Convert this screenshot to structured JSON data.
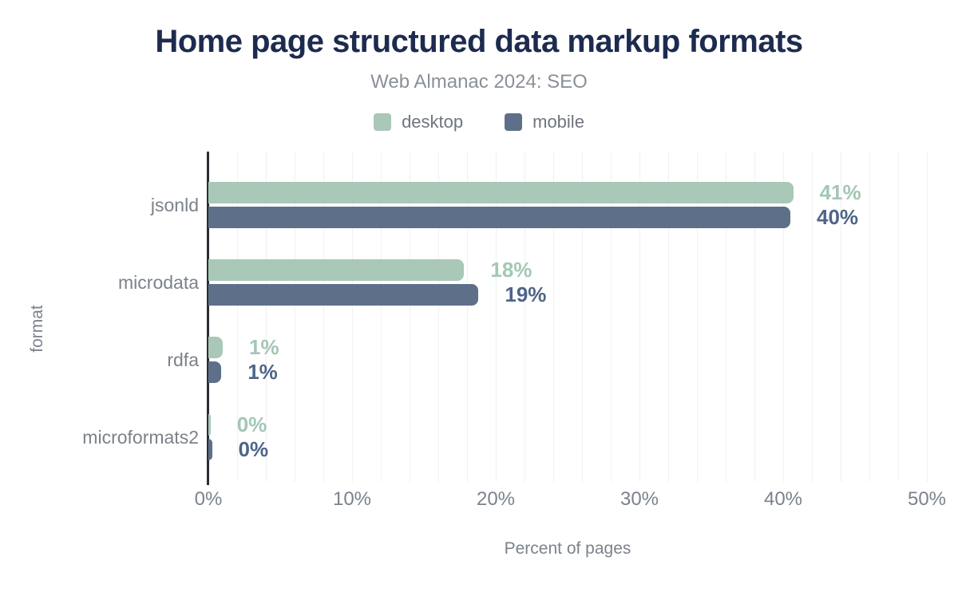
{
  "header": {
    "title": "Home page structured data markup formats",
    "subtitle": "Web Almanac 2024: SEO"
  },
  "chart_data": {
    "type": "bar",
    "orientation": "horizontal",
    "title": "Home page structured data markup formats",
    "subtitle": "Web Almanac 2024: SEO",
    "categories": [
      "jsonld",
      "microdata",
      "rdfa",
      "microformats2"
    ],
    "series": [
      {
        "name": "desktop",
        "color": "#a9c8b8",
        "label_color": "#a4c7b5",
        "values": [
          41,
          18,
          1,
          0
        ],
        "value_labels": [
          "41%",
          "18%",
          "1%",
          "0%"
        ],
        "bar_pcts": [
          40.7,
          17.8,
          1.0,
          0.15
        ]
      },
      {
        "name": "mobile",
        "color": "#5e7089",
        "label_color": "#4e6588",
        "values": [
          40,
          19,
          1,
          0
        ],
        "value_labels": [
          "40%",
          "19%",
          "1%",
          "0%"
        ],
        "bar_pcts": [
          40.5,
          18.8,
          0.9,
          0.25
        ]
      }
    ],
    "xlabel": "Percent of pages",
    "ylabel": "format",
    "xlim": [
      0,
      50
    ],
    "x_tick_values": [
      0,
      10,
      20,
      30,
      40,
      50
    ],
    "x_tick_labels": [
      "0%",
      "10%",
      "20%",
      "30%",
      "40%",
      "50%"
    ],
    "gridline_step_pct": 2,
    "grid": true,
    "legend_position": "top"
  },
  "colors": {
    "title": "#1c2b4e",
    "subtitle": "#8a9098",
    "axis_text": "#7b828b",
    "legend_text": "#6f757d",
    "axis_line": "#2b2e34",
    "gridline": "#f1f1f3",
    "background": "#ffffff",
    "desktop": "#a9c8b8",
    "mobile": "#5e7089"
  }
}
